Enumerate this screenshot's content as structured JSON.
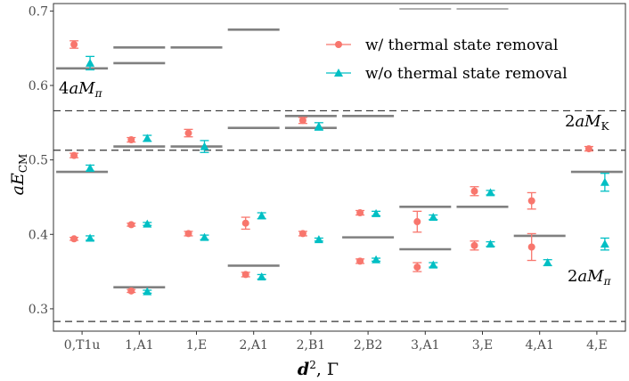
{
  "chart_data": {
    "type": "scatter",
    "title": "",
    "xlabel": "d²,Γ",
    "ylabel": "aE_CM",
    "ylim": [
      0.27,
      0.71
    ],
    "yticks": [
      0.3,
      0.4,
      0.5,
      0.6,
      0.7
    ],
    "grid": false,
    "legend_position": "top-right",
    "colors": {
      "with": "#F8766D",
      "without": "#00BFC4",
      "level": "#808080",
      "dashed": "#333333"
    },
    "categories": [
      "0,T1u",
      "1,A1",
      "1,E",
      "2,A1",
      "2,B1",
      "2,B2",
      "3,A1",
      "3,E",
      "4,A1",
      "4,E"
    ],
    "series": [
      {
        "name": "w/ thermal state removal",
        "marker": "circle",
        "color": "#F8766D",
        "points": [
          {
            "x": 0,
            "y": 0.655,
            "err": 0.005
          },
          {
            "x": 0,
            "y": 0.506,
            "err": 0.003
          },
          {
            "x": 0,
            "y": 0.394,
            "err": 0.002
          },
          {
            "x": 1,
            "y": 0.527,
            "err": 0.003
          },
          {
            "x": 1,
            "y": 0.413,
            "err": 0.002
          },
          {
            "x": 1,
            "y": 0.324,
            "err": 0.002
          },
          {
            "x": 2,
            "y": 0.536,
            "err": 0.005
          },
          {
            "x": 2,
            "y": 0.401,
            "err": 0.003
          },
          {
            "x": 3,
            "y": 0.415,
            "err": 0.008
          },
          {
            "x": 3,
            "y": 0.346,
            "err": 0.003
          },
          {
            "x": 4,
            "y": 0.553,
            "err": 0.004
          },
          {
            "x": 4,
            "y": 0.401,
            "err": 0.003
          },
          {
            "x": 5,
            "y": 0.429,
            "err": 0.003
          },
          {
            "x": 5,
            "y": 0.364,
            "err": 0.003
          },
          {
            "x": 6,
            "y": 0.417,
            "err": 0.014
          },
          {
            "x": 6,
            "y": 0.356,
            "err": 0.006
          },
          {
            "x": 7,
            "y": 0.458,
            "err": 0.006
          },
          {
            "x": 7,
            "y": 0.385,
            "err": 0.006
          },
          {
            "x": 8,
            "y": 0.445,
            "err": 0.011
          },
          {
            "x": 8,
            "y": 0.383,
            "err": 0.018
          },
          {
            "x": 9,
            "y": 0.515,
            "err": 0.003
          }
        ]
      },
      {
        "name": "w/o thermal state removal",
        "marker": "triangle",
        "color": "#00BFC4",
        "points": [
          {
            "x": 0,
            "y": 0.63,
            "err": 0.009
          },
          {
            "x": 0,
            "y": 0.489,
            "err": 0.004
          },
          {
            "x": 0,
            "y": 0.395,
            "err": 0.003
          },
          {
            "x": 1,
            "y": 0.529,
            "err": 0.004
          },
          {
            "x": 1,
            "y": 0.414,
            "err": 0.002
          },
          {
            "x": 1,
            "y": 0.323,
            "err": 0.002
          },
          {
            "x": 2,
            "y": 0.518,
            "err": 0.008
          },
          {
            "x": 2,
            "y": 0.396,
            "err": 0.003
          },
          {
            "x": 3,
            "y": 0.425,
            "err": 0.004
          },
          {
            "x": 3,
            "y": 0.343,
            "err": 0.003
          },
          {
            "x": 4,
            "y": 0.545,
            "err": 0.005
          },
          {
            "x": 4,
            "y": 0.393,
            "err": 0.002
          },
          {
            "x": 5,
            "y": 0.428,
            "err": 0.003
          },
          {
            "x": 5,
            "y": 0.366,
            "err": 0.002
          },
          {
            "x": 6,
            "y": 0.423,
            "err": 0.003
          },
          {
            "x": 6,
            "y": 0.359,
            "err": 0.003
          },
          {
            "x": 7,
            "y": 0.456,
            "err": 0.003
          },
          {
            "x": 7,
            "y": 0.387,
            "err": 0.003
          },
          {
            "x": 8,
            "y": 0.362,
            "err": 0.004
          },
          {
            "x": 9,
            "y": 0.47,
            "err": 0.012
          },
          {
            "x": 9,
            "y": 0.387,
            "err": 0.008
          }
        ]
      }
    ],
    "levels": [
      {
        "x": 0,
        "y": 0.623
      },
      {
        "x": 0,
        "y": 0.484
      },
      {
        "x": 1,
        "y": 0.651
      },
      {
        "x": 1,
        "y": 0.63
      },
      {
        "x": 1,
        "y": 0.518
      },
      {
        "x": 1,
        "y": 0.329
      },
      {
        "x": 2,
        "y": 0.651
      },
      {
        "x": 2,
        "y": 0.518
      },
      {
        "x": 3,
        "y": 0.675
      },
      {
        "x": 3,
        "y": 0.543
      },
      {
        "x": 3,
        "y": 0.358
      },
      {
        "x": 4,
        "y": 0.559
      },
      {
        "x": 4,
        "y": 0.543
      },
      {
        "x": 5,
        "y": 0.559
      },
      {
        "x": 5,
        "y": 0.396
      },
      {
        "x": 6,
        "y": 0.437
      },
      {
        "x": 6,
        "y": 0.38
      },
      {
        "x": 7,
        "y": 0.437
      },
      {
        "x": 8,
        "y": 0.398
      },
      {
        "x": 9,
        "y": 0.484
      }
    ],
    "thresholds": [
      {
        "label": "4aMπ",
        "y": 0.566
      },
      {
        "label": "2aMK",
        "y": 0.513
      },
      {
        "label": "2aMπ",
        "y": 0.283
      }
    ]
  }
}
